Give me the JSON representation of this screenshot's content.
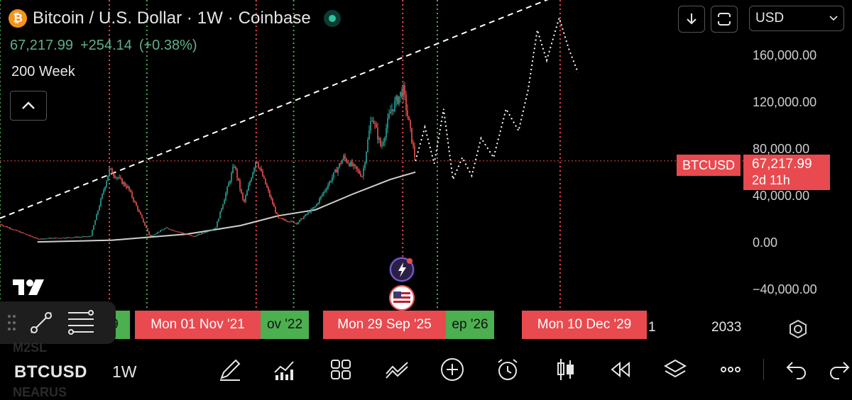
{
  "header": {
    "logo_glyph": "₿",
    "title": "Bitcoin / U.S. Dollar · 1W · Coinbase",
    "last": "67,217.99",
    "change": "+254.14",
    "change_pct": "(+0.38%)",
    "indicator": "200 Week"
  },
  "toolbar": {
    "currency": "USD",
    "download_icon": "download-icon",
    "fullscreen_icon": "fullscreen-icon"
  },
  "price_axis": {
    "ticks": [
      "160,000.00",
      "120,000.00",
      "80,000.00",
      "40,000.00",
      "0.00",
      "−40,000.00"
    ],
    "symbol_tag": "BTCUSD",
    "price_tag": "67,217.99",
    "countdown": "2d 11h"
  },
  "time_axis": {
    "labels": [
      {
        "text": "9",
        "kind": "green"
      },
      {
        "text": "Mon 01 Nov '21",
        "kind": "red"
      },
      {
        "text": "ov '22",
        "kind": "green"
      },
      {
        "text": "Mon 29 Sep '25",
        "kind": "red"
      },
      {
        "text": "ep '26",
        "kind": "green"
      },
      {
        "text": "Mon 10 Dec '29",
        "kind": "red"
      }
    ],
    "partial_a": "1",
    "partial_b": "2033"
  },
  "chart_data": {
    "type": "line",
    "series": [
      {
        "values_kind": "price",
        "x": [
          "2015",
          "2016",
          "2017-06",
          "2017-12",
          "2018-06",
          "2019-01",
          "2019-06",
          "2020-03",
          "2020-10",
          "2021-04",
          "2021-07",
          "2021-11",
          "2022-06",
          "2022-12",
          "2023-06",
          "2024-03",
          "2024-09",
          "2024-12",
          "2025-03",
          "2025-06",
          "2025-10",
          "2026-02"
        ],
        "values": [
          15000,
          3000,
          5000,
          60000,
          45000,
          5000,
          12000,
          5000,
          12000,
          64000,
          32000,
          69000,
          20000,
          16000,
          30000,
          70000,
          55000,
          105000,
          78000,
          108000,
          126000,
          67218
        ]
      },
      {
        "name": "200 Week",
        "x": [
          "2016",
          "2018",
          "2020",
          "2021-06",
          "2022-06",
          "2023-06",
          "2024-06",
          "2025-06",
          "2026-02"
        ],
        "values": [
          500,
          2000,
          7000,
          14000,
          22000,
          27000,
          40000,
          52000,
          58000
        ]
      },
      {
        "values_kind": "projection",
        "x": [
          "2026-02",
          "2026-05",
          "2026-08",
          "2026-11",
          "2027-02",
          "2027-05",
          "2027-08",
          "2027-11",
          "2028-03",
          "2028-07",
          "2028-11",
          "2029-02",
          "2029-05",
          "2029-08",
          "2029-12",
          "2030-03",
          "2030-06"
        ],
        "values": [
          67218,
          95000,
          65000,
          110000,
          52000,
          70000,
          55000,
          86000,
          70000,
          110000,
          92000,
          125000,
          175000,
          150000,
          185000,
          160000,
          140000
        ]
      }
    ],
    "cycle_lines": [
      {
        "date": "2017-12",
        "color": "#e84a4f"
      },
      {
        "date": "2021-11-01",
        "color": "#e84a4f"
      },
      {
        "date": "2025-09-29",
        "color": "#e84a4f"
      },
      {
        "date": "2029-12-10",
        "color": "#e84a4f"
      },
      {
        "date": "2015-01",
        "color": "#4caf50"
      },
      {
        "date": "2018-12",
        "color": "#4caf50"
      },
      {
        "date": "2022-11",
        "color": "#4caf50"
      },
      {
        "date": "2026-09",
        "color": "#4caf50"
      }
    ],
    "trendline": {
      "from": [
        "2015",
        20000
      ],
      "to": [
        "2030-06",
        210000
      ],
      "style": "dashed"
    },
    "current_price_line": 67217.99,
    "ylim": [
      -60000,
      200000
    ],
    "grid": false
  },
  "bottom_bar": {
    "symbol": "BTCUSD",
    "interval": "1W",
    "ghost_above": "M2SL",
    "ghost_below": "NEARUS",
    "icons": [
      "brush-icon",
      "indicators-icon",
      "layouts-icon",
      "compare-icon",
      "add-icon",
      "alert-clock-icon",
      "candles-icon",
      "replay-icon",
      "layers-icon",
      "more-icon",
      "undo-icon",
      "redo-icon"
    ]
  },
  "colors": {
    "bullish": "#26a69a",
    "bearish": "#ef5350",
    "accent_red": "#e84a4f",
    "accent_green": "#4caf50"
  }
}
